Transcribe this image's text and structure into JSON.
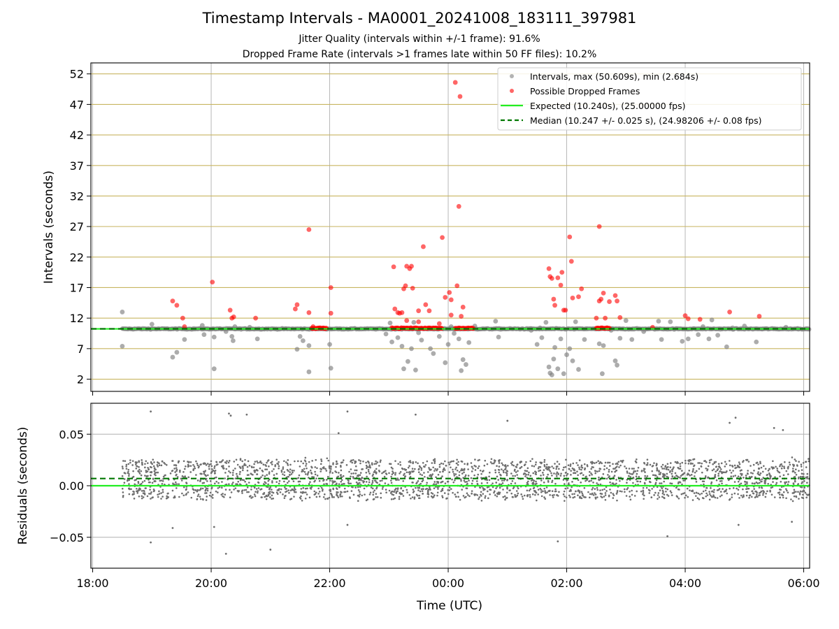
{
  "chart_data": [
    {
      "panel": "intervals",
      "type": "scatter",
      "title": "Timestamp Intervals - MA0001_20241008_183111_397981",
      "subtitle_lines": [
        "Jitter Quality (intervals within +/-1 frame): 91.6%",
        "Dropped Frame Rate (intervals >1 frames late within 50 FF files): 10.2%"
      ],
      "xlabel": "",
      "ylabel": "Intervals (seconds)",
      "x_unit": "hours since 18:00 UTC",
      "xlim": [
        -0.03,
        12.1
      ],
      "ylim": [
        0,
        53.8
      ],
      "yticks": [
        2,
        7,
        12,
        17,
        22,
        27,
        32,
        37,
        42,
        47,
        52
      ],
      "grid": "horizontal lines at every y tick, vertical lines at x ticks",
      "legend_position": "top-right",
      "legend": [
        "Intervals, max (50.609s), min (2.684s)",
        "Possible Dropped Frames",
        "Expected (10.240s), (25.00000 fps)",
        "Median (10.247 +/- 0.025 s), (24.98206 +/- 0.08 fps)"
      ],
      "expected": 10.24,
      "median": 10.247,
      "series": [
        {
          "name": "Intervals, max (50.609s), min (2.684s)",
          "color": "#808080",
          "points": [
            [
              0.5,
              13.0
            ],
            [
              0.5,
              7.4
            ],
            [
              1.0,
              11.0
            ],
            [
              1.35,
              5.6
            ],
            [
              1.42,
              6.4
            ],
            [
              1.55,
              8.5
            ],
            [
              1.85,
              10.8
            ],
            [
              1.88,
              9.3
            ],
            [
              2.05,
              8.9
            ],
            [
              2.05,
              3.7
            ],
            [
              2.25,
              9.8
            ],
            [
              2.35,
              9.0
            ],
            [
              2.37,
              8.3
            ],
            [
              2.4,
              10.6
            ],
            [
              2.65,
              10.5
            ],
            [
              2.78,
              8.6
            ],
            [
              3.45,
              6.9
            ],
            [
              3.5,
              9.0
            ],
            [
              3.55,
              8.3
            ],
            [
              3.65,
              7.5
            ],
            [
              3.65,
              3.2
            ],
            [
              4.0,
              7.7
            ],
            [
              4.02,
              3.8
            ],
            [
              4.95,
              9.4
            ],
            [
              5.02,
              11.2
            ],
            [
              5.05,
              8.1
            ],
            [
              5.15,
              8.8
            ],
            [
              5.22,
              7.4
            ],
            [
              5.25,
              3.7
            ],
            [
              5.32,
              4.9
            ],
            [
              5.38,
              7.0
            ],
            [
              5.42,
              11.3
            ],
            [
              5.45,
              3.5
            ],
            [
              5.5,
              9.6
            ],
            [
              5.55,
              8.4
            ],
            [
              5.7,
              7.0
            ],
            [
              5.75,
              6.2
            ],
            [
              5.85,
              9.0
            ],
            [
              5.95,
              4.7
            ],
            [
              6.0,
              7.7
            ],
            [
              6.05,
              10.6
            ],
            [
              6.1,
              9.5
            ],
            [
              6.18,
              8.6
            ],
            [
              6.22,
              3.4
            ],
            [
              6.25,
              5.2
            ],
            [
              6.3,
              4.4
            ],
            [
              6.35,
              8.0
            ],
            [
              6.45,
              10.7
            ],
            [
              6.8,
              11.5
            ],
            [
              6.85,
              8.9
            ],
            [
              7.4,
              10.0
            ],
            [
              7.5,
              7.7
            ],
            [
              7.55,
              10.4
            ],
            [
              7.58,
              8.8
            ],
            [
              7.65,
              11.3
            ],
            [
              7.7,
              4.0
            ],
            [
              7.72,
              3.0
            ],
            [
              7.75,
              2.7
            ],
            [
              7.78,
              5.3
            ],
            [
              7.8,
              7.2
            ],
            [
              7.85,
              3.7
            ],
            [
              7.9,
              8.6
            ],
            [
              7.95,
              2.9
            ],
            [
              8.0,
              6.0
            ],
            [
              8.05,
              7.0
            ],
            [
              8.1,
              5.0
            ],
            [
              8.15,
              11.4
            ],
            [
              8.2,
              3.6
            ],
            [
              8.3,
              8.5
            ],
            [
              8.55,
              7.8
            ],
            [
              8.6,
              2.9
            ],
            [
              8.62,
              7.5
            ],
            [
              8.75,
              10.0
            ],
            [
              8.82,
              5.0
            ],
            [
              8.85,
              4.3
            ],
            [
              8.9,
              8.7
            ],
            [
              9.0,
              11.6
            ],
            [
              9.1,
              8.5
            ],
            [
              9.3,
              9.8
            ],
            [
              9.55,
              11.5
            ],
            [
              9.6,
              8.5
            ],
            [
              9.75,
              11.4
            ],
            [
              9.95,
              8.2
            ],
            [
              10.05,
              8.6
            ],
            [
              10.22,
              9.3
            ],
            [
              10.3,
              10.6
            ],
            [
              10.4,
              8.6
            ],
            [
              10.45,
              11.7
            ],
            [
              10.55,
              9.2
            ],
            [
              10.7,
              7.3
            ],
            [
              10.8,
              10.4
            ],
            [
              11.0,
              10.7
            ],
            [
              11.2,
              8.1
            ],
            [
              11.3,
              10.2
            ],
            [
              11.7,
              10.5
            ],
            [
              11.9,
              10.3
            ]
          ]
        },
        {
          "name": "Possible Dropped Frames",
          "color": "#ff0000",
          "points": [
            [
              1.35,
              14.8
            ],
            [
              1.42,
              14.1
            ],
            [
              1.52,
              12.0
            ],
            [
              1.55,
              10.6
            ],
            [
              2.02,
              17.9
            ],
            [
              2.32,
              13.3
            ],
            [
              2.35,
              12.0
            ],
            [
              2.38,
              12.2
            ],
            [
              2.75,
              12.0
            ],
            [
              3.42,
              13.5
            ],
            [
              3.45,
              14.2
            ],
            [
              3.65,
              12.9
            ],
            [
              3.72,
              10.6
            ],
            [
              3.65,
              26.5
            ],
            [
              4.02,
              17.0
            ],
            [
              4.02,
              12.8
            ],
            [
              5.08,
              20.4
            ],
            [
              5.1,
              13.5
            ],
            [
              5.15,
              12.9
            ],
            [
              5.18,
              12.8
            ],
            [
              5.22,
              12.9
            ],
            [
              5.25,
              16.8
            ],
            [
              5.28,
              17.3
            ],
            [
              5.3,
              20.5
            ],
            [
              5.35,
              20.1
            ],
            [
              5.38,
              20.5
            ],
            [
              5.4,
              16.9
            ],
            [
              5.3,
              11.6
            ],
            [
              5.5,
              11.4
            ],
            [
              5.5,
              13.2
            ],
            [
              5.58,
              23.7
            ],
            [
              5.62,
              14.2
            ],
            [
              5.68,
              13.2
            ],
            [
              5.9,
              25.2
            ],
            [
              5.95,
              15.4
            ],
            [
              6.02,
              16.2
            ],
            [
              6.05,
              15.0
            ],
            [
              6.05,
              12.5
            ],
            [
              6.15,
              17.3
            ],
            [
              6.22,
              12.3
            ],
            [
              6.25,
              13.8
            ],
            [
              6.18,
              30.3
            ],
            [
              6.12,
              50.6
            ],
            [
              6.2,
              48.3
            ],
            [
              5.85,
              11.1
            ],
            [
              7.7,
              20.1
            ],
            [
              7.72,
              18.8
            ],
            [
              7.75,
              18.5
            ],
            [
              7.78,
              15.1
            ],
            [
              7.8,
              14.1
            ],
            [
              7.85,
              18.6
            ],
            [
              7.9,
              17.4
            ],
            [
              7.92,
              19.5
            ],
            [
              7.95,
              13.3
            ],
            [
              7.98,
              13.3
            ],
            [
              8.05,
              25.3
            ],
            [
              8.08,
              21.3
            ],
            [
              8.1,
              15.3
            ],
            [
              8.2,
              15.5
            ],
            [
              8.25,
              16.8
            ],
            [
              8.5,
              12.0
            ],
            [
              8.55,
              14.8
            ],
            [
              8.58,
              15.1
            ],
            [
              8.55,
              27.0
            ],
            [
              8.62,
              16.1
            ],
            [
              8.65,
              12.0
            ],
            [
              8.72,
              14.7
            ],
            [
              8.82,
              15.7
            ],
            [
              8.85,
              14.8
            ],
            [
              8.9,
              12.1
            ],
            [
              9.45,
              10.5
            ],
            [
              10.0,
              12.4
            ],
            [
              10.05,
              11.9
            ],
            [
              10.25,
              11.8
            ],
            [
              10.75,
              13.0
            ],
            [
              11.25,
              12.3
            ]
          ]
        }
      ],
      "dropped_frame_clusters": [
        [
          3.7,
          3.95
        ],
        [
          5.05,
          5.9
        ],
        [
          6.12,
          6.42
        ],
        [
          8.5,
          8.72
        ]
      ]
    },
    {
      "panel": "residuals",
      "type": "scatter",
      "xlabel": "Time (UTC)",
      "ylabel": "Residuals (seconds)",
      "xlim": [
        -0.03,
        12.1
      ],
      "ylim": [
        -0.08,
        0.08
      ],
      "yticks": [
        -0.05,
        0.0,
        0.05
      ],
      "ytick_labels": [
        "−0.05",
        "0.00",
        "0.05"
      ],
      "xticks": [
        0,
        2,
        4,
        6,
        8,
        10,
        12
      ],
      "xtick_labels": [
        "18:00",
        "20:00",
        "22:00",
        "00:00",
        "02:00",
        "04:00",
        "06:00"
      ],
      "grid": "both",
      "expected": 0.0,
      "median": 0.007,
      "residual_range": [
        0.5,
        12.1
      ],
      "residual_band": [
        -0.013,
        0.025
      ],
      "outliers": [
        [
          0.98,
          0.072
        ],
        [
          2.3,
          0.07
        ],
        [
          2.33,
          0.068
        ],
        [
          2.6,
          0.069
        ],
        [
          4.15,
          0.051
        ],
        [
          4.3,
          0.072
        ],
        [
          5.45,
          0.069
        ],
        [
          7.0,
          0.063
        ],
        [
          10.75,
          0.061
        ],
        [
          10.85,
          0.066
        ],
        [
          11.5,
          0.056
        ],
        [
          11.65,
          0.054
        ],
        [
          0.98,
          -0.055
        ],
        [
          1.35,
          -0.041
        ],
        [
          2.05,
          -0.04
        ],
        [
          2.25,
          -0.066
        ],
        [
          3.0,
          -0.062
        ],
        [
          4.3,
          -0.038
        ],
        [
          7.85,
          -0.054
        ],
        [
          9.7,
          -0.049
        ],
        [
          10.9,
          -0.038
        ],
        [
          11.8,
          -0.035
        ]
      ],
      "series": [
        {
          "name": "",
          "color": "#6e6e6e",
          "note": "~2700 residual points within band"
        }
      ]
    }
  ],
  "colors": {
    "grid": "#b0b0b0",
    "horizontal_grid_top": "#c8b560",
    "expected_line": "#22ee22",
    "median_line": "#007700",
    "dropped": "#ff0000",
    "intervals": "#808080"
  }
}
